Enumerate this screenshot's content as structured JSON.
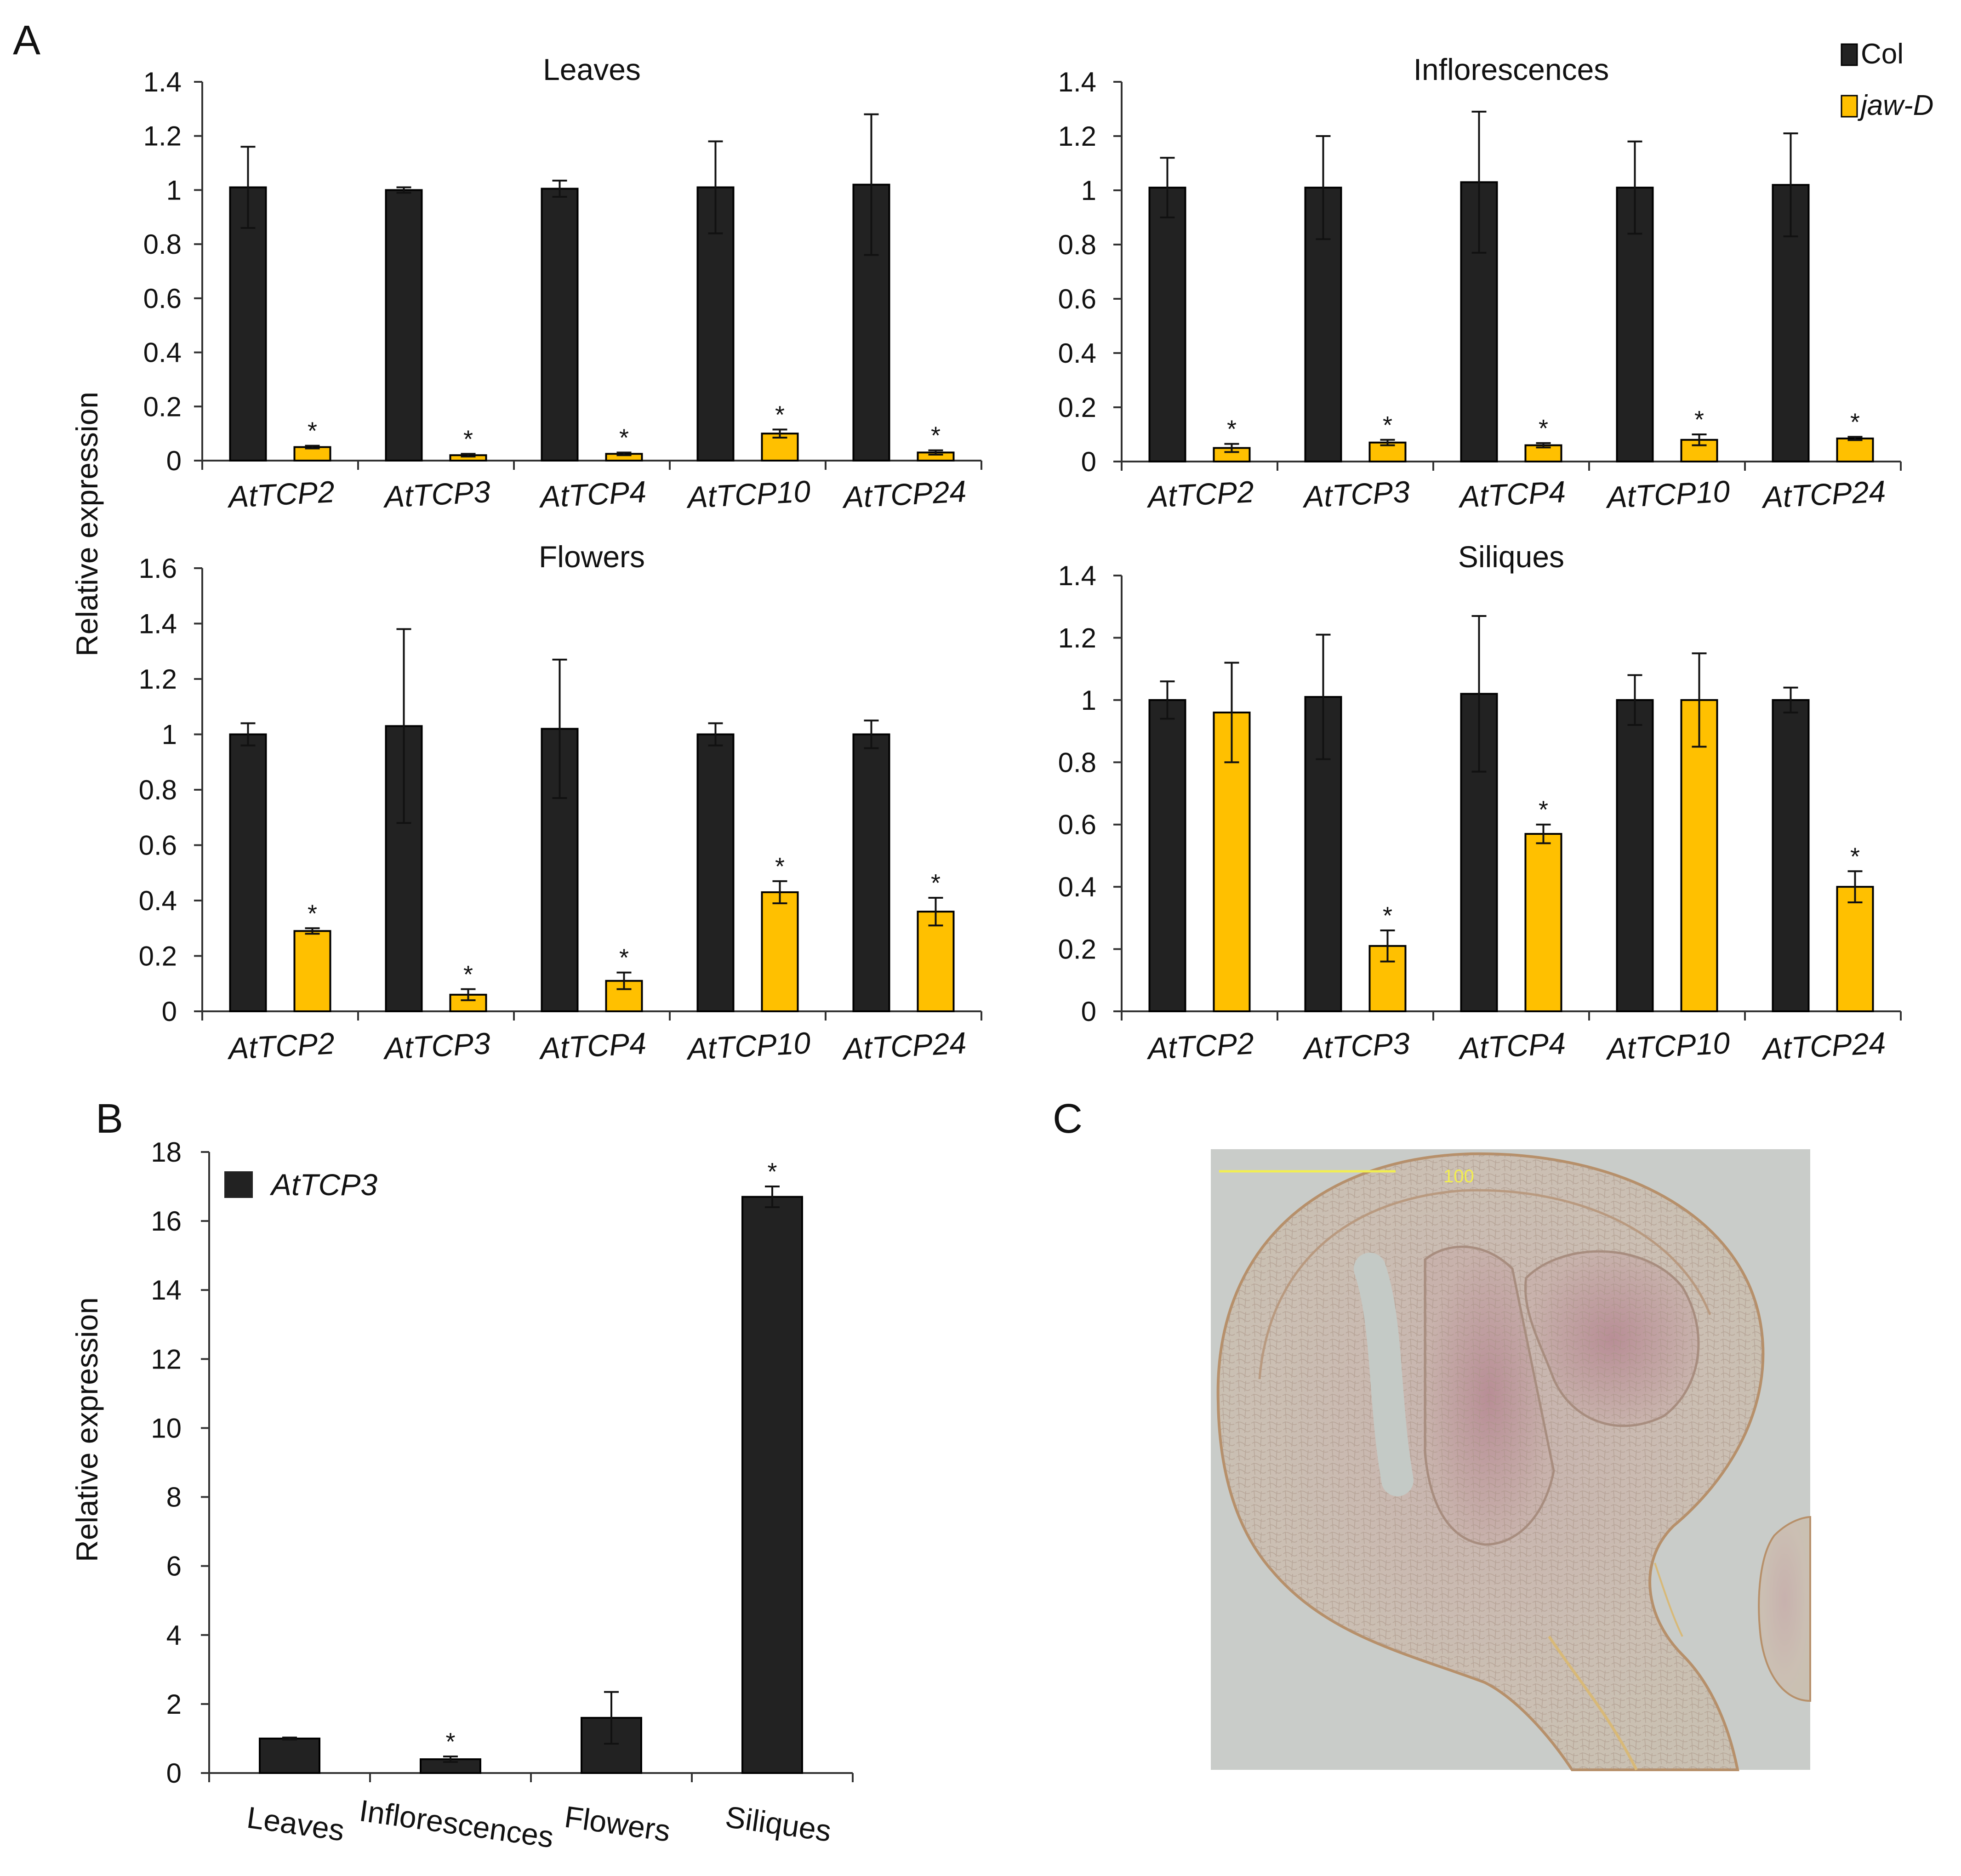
{
  "colors": {
    "col": "#222222",
    "jaw_d": "#FFC000",
    "axis": "#333333",
    "scale_bar": "#F2EE50"
  },
  "panel_letters": {
    "a": "A",
    "b": "B",
    "c": "C"
  },
  "y_axis_label": "Relative expression",
  "legend_a": [
    {
      "name": "Col",
      "italic": false
    },
    {
      "name": "jaw-D",
      "italic": true
    }
  ],
  "chart_data": [
    {
      "type": "bar",
      "panel": "A",
      "title": "Leaves",
      "ylabel": "Relative expression",
      "ylim": [
        0,
        1.4
      ],
      "yticks": [
        0,
        0.2,
        0.4,
        0.6,
        0.8,
        1,
        1.2,
        1.4
      ],
      "categories": [
        "AtTCP2",
        "AtTCP3",
        "AtTCP4",
        "AtTCP10",
        "AtTCP24"
      ],
      "series": [
        {
          "name": "Col",
          "values": [
            1.01,
            1.0,
            1.005,
            1.01,
            1.02
          ],
          "errors": [
            0.15,
            0.01,
            0.03,
            0.17,
            0.26
          ]
        },
        {
          "name": "jaw-D",
          "values": [
            0.05,
            0.02,
            0.025,
            0.1,
            0.03
          ],
          "errors": [
            0.005,
            0.005,
            0.005,
            0.015,
            0.008
          ]
        }
      ],
      "significant": [
        true,
        true,
        true,
        true,
        true
      ],
      "significance_marker": "*"
    },
    {
      "type": "bar",
      "panel": "A",
      "title": "Inflorescences",
      "ylabel": "Relative expression",
      "ylim": [
        0,
        1.4
      ],
      "yticks": [
        0,
        0.2,
        0.4,
        0.6,
        0.8,
        1,
        1.2,
        1.4
      ],
      "categories": [
        "AtTCP2",
        "AtTCP3",
        "AtTCP4",
        "AtTCP10",
        "AtTCP24"
      ],
      "series": [
        {
          "name": "Col",
          "values": [
            1.01,
            1.01,
            1.03,
            1.01,
            1.02
          ],
          "errors": [
            0.11,
            0.19,
            0.26,
            0.17,
            0.19
          ]
        },
        {
          "name": "jaw-D",
          "values": [
            0.05,
            0.07,
            0.06,
            0.08,
            0.085
          ],
          "errors": [
            0.015,
            0.01,
            0.008,
            0.02,
            0.006
          ]
        }
      ],
      "significant": [
        true,
        true,
        true,
        true,
        true
      ],
      "significance_marker": "*"
    },
    {
      "type": "bar",
      "panel": "A",
      "title": "Flowers",
      "ylabel": "Relative expression",
      "ylim": [
        0,
        1.6
      ],
      "yticks": [
        0,
        0.2,
        0.4,
        0.6,
        0.8,
        1,
        1.2,
        1.4,
        1.6
      ],
      "categories": [
        "AtTCP2",
        "AtTCP3",
        "AtTCP4",
        "AtTCP10",
        "AtTCP24"
      ],
      "series": [
        {
          "name": "Col",
          "values": [
            1.0,
            1.03,
            1.02,
            1.0,
            1.0
          ],
          "errors": [
            0.04,
            0.35,
            0.25,
            0.04,
            0.05
          ]
        },
        {
          "name": "jaw-D",
          "values": [
            0.29,
            0.06,
            0.11,
            0.43,
            0.36
          ],
          "errors": [
            0.01,
            0.02,
            0.03,
            0.04,
            0.05
          ]
        }
      ],
      "significant": [
        true,
        true,
        true,
        true,
        true
      ],
      "significance_marker": "*"
    },
    {
      "type": "bar",
      "panel": "A",
      "title": "Siliques",
      "ylabel": "Relative expression",
      "ylim": [
        0,
        1.4
      ],
      "yticks": [
        0,
        0.2,
        0.4,
        0.6,
        0.8,
        1,
        1.2,
        1.4
      ],
      "categories": [
        "AtTCP2",
        "AtTCP3",
        "AtTCP4",
        "AtTCP10",
        "AtTCP24"
      ],
      "series": [
        {
          "name": "Col",
          "values": [
            1.0,
            1.01,
            1.02,
            1.0,
            1.0
          ],
          "errors": [
            0.06,
            0.2,
            0.25,
            0.08,
            0.04
          ]
        },
        {
          "name": "jaw-D",
          "values": [
            0.96,
            0.21,
            0.57,
            1.0,
            0.4
          ],
          "errors": [
            0.16,
            0.05,
            0.03,
            0.15,
            0.05
          ]
        }
      ],
      "significant": [
        false,
        true,
        true,
        false,
        true
      ],
      "significance_marker": "*"
    },
    {
      "type": "bar",
      "panel": "B",
      "title": "",
      "ylabel": "Relative expression",
      "ylim": [
        0,
        18
      ],
      "yticks": [
        0,
        2,
        4,
        6,
        8,
        10,
        12,
        14,
        16,
        18
      ],
      "categories": [
        "Leaves",
        "Inflorescences",
        "Flowers",
        "Siliques"
      ],
      "series": [
        {
          "name": "AtTCP3",
          "values": [
            1.0,
            0.4,
            1.6,
            16.7
          ],
          "errors": [
            0.03,
            0.08,
            0.75,
            0.3
          ]
        }
      ],
      "significant": [
        false,
        true,
        false,
        true
      ],
      "significance_marker": "*",
      "legend": "AtTCP3"
    }
  ],
  "micrograph": {
    "scale_bar_label": "100"
  }
}
